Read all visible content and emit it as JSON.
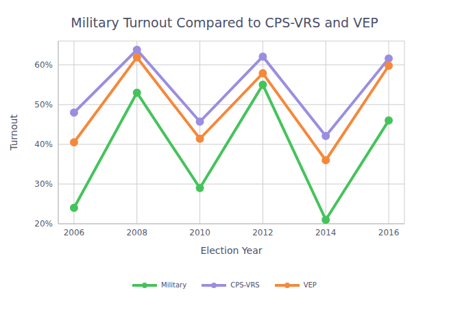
{
  "chart_data": {
    "type": "line",
    "title": "Military Turnout Compared to CPS-VRS and VEP",
    "x_label": "Election Year",
    "y_label": "Turnout",
    "x": [
      2006,
      2008,
      2010,
      2012,
      2014,
      2016
    ],
    "series": [
      {
        "name": "Military",
        "color": "#45c35b",
        "marker": "circle",
        "values": [
          24,
          53,
          29,
          55,
          21,
          46
        ]
      },
      {
        "name": "CPS-VRS",
        "color": "#9b8ee0",
        "marker": "circle",
        "values": [
          48,
          63.8,
          45.7,
          62.1,
          42.1,
          61.6
        ]
      },
      {
        "name": "VEP",
        "color": "#f5883a",
        "marker": "circle",
        "values": [
          40.5,
          61.9,
          41.4,
          57.9,
          36,
          59.8
        ]
      }
    ],
    "xlim": [
      2005.5,
      2016.5
    ],
    "xticks": [
      2006,
      2008,
      2010,
      2012,
      2014,
      2016
    ],
    "ylim": [
      20,
      66
    ],
    "yticks": [
      {
        "value": 20,
        "label": "20%"
      },
      {
        "value": 30,
        "label": "30%"
      },
      {
        "value": 40,
        "label": "40%"
      },
      {
        "value": 50,
        "label": "50%"
      },
      {
        "value": 60,
        "label": "60%"
      }
    ],
    "grid": true,
    "legend": "bottom"
  }
}
